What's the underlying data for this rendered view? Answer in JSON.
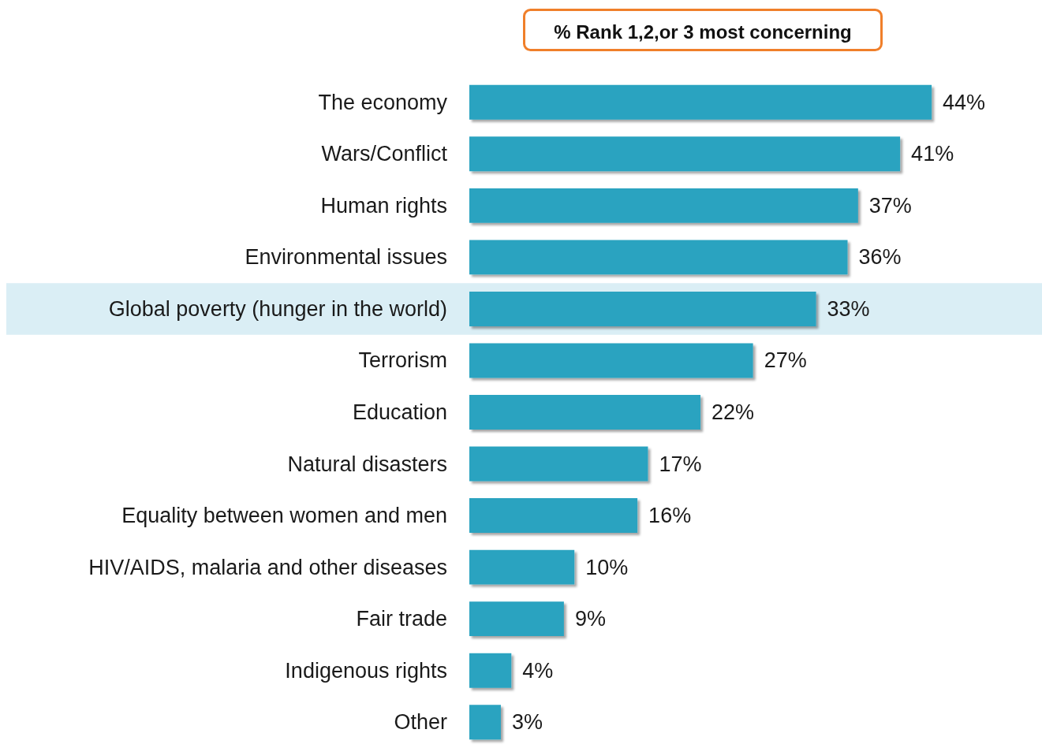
{
  "chart_data": {
    "type": "bar",
    "orientation": "horizontal",
    "title": "% Rank 1,2,or 3 most concerning",
    "categories": [
      "The economy",
      "Wars/Conflict",
      "Human rights",
      "Environmental issues",
      "Global poverty (hunger in the world)",
      "Terrorism",
      "Education",
      "Natural disasters",
      "Equality between women and men",
      "HIV/AIDS, malaria and other diseases",
      "Fair trade",
      "Indigenous rights",
      "Other"
    ],
    "values": [
      44,
      41,
      37,
      36,
      33,
      27,
      22,
      17,
      16,
      10,
      9,
      4,
      3
    ],
    "value_labels": [
      "44%",
      "41%",
      "37%",
      "36%",
      "33%",
      "27%",
      "22%",
      "17%",
      "16%",
      "10%",
      "9%",
      "4%",
      "3%"
    ],
    "color": "#2ba3c0",
    "bands": [
      {
        "axis": "y",
        "from": "Global poverty (hunger in the world)",
        "to": "Global poverty (hunger in the world)",
        "color": "#daeef5"
      }
    ],
    "grid": false
  }
}
